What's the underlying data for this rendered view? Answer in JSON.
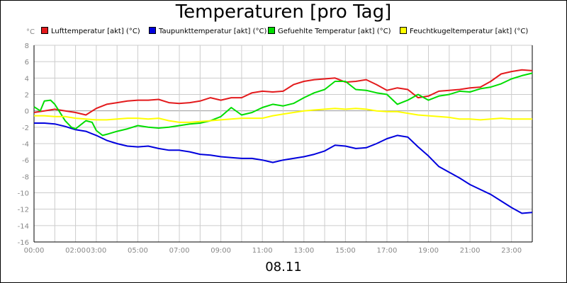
{
  "chart_data": {
    "type": "line",
    "title": "Temperaturen [pro Tag]",
    "xlabel": "08.11",
    "ylabel": "°C",
    "x_range": [
      0,
      24
    ],
    "ylim": [
      -16,
      8
    ],
    "y_ticks": [
      8,
      6,
      4,
      2,
      0,
      -2,
      -4,
      -6,
      -8,
      -10,
      -12,
      -14,
      -16
    ],
    "x_ticks": [
      {
        "h": 0,
        "label": "00:00"
      },
      {
        "h": 2,
        "label": "02:00"
      },
      {
        "h": 3,
        "label": "03:00"
      },
      {
        "h": 5,
        "label": "05:00"
      },
      {
        "h": 7,
        "label": "07:00"
      },
      {
        "h": 9,
        "label": "09:00"
      },
      {
        "h": 11,
        "label": "11:00"
      },
      {
        "h": 13,
        "label": "13:00"
      },
      {
        "h": 15,
        "label": "15:00"
      },
      {
        "h": 17,
        "label": "17:00"
      },
      {
        "h": 19,
        "label": "19:00"
      },
      {
        "h": 21,
        "label": "21:00"
      },
      {
        "h": 23,
        "label": "23:00"
      }
    ],
    "grid": true,
    "legend_position": "top",
    "series": [
      {
        "name": "Lufttemperatur [akt] (°C)",
        "color": "#e31a1c",
        "points": [
          [
            0,
            -0.2
          ],
          [
            0.5,
            0
          ],
          [
            1,
            0.2
          ],
          [
            1.5,
            0
          ],
          [
            2,
            -0.2
          ],
          [
            2.5,
            -0.5
          ],
          [
            3,
            0.3
          ],
          [
            3.5,
            0.8
          ],
          [
            4,
            1
          ],
          [
            4.5,
            1.2
          ],
          [
            5,
            1.3
          ],
          [
            5.5,
            1.3
          ],
          [
            6,
            1.4
          ],
          [
            6.5,
            1
          ],
          [
            7,
            0.9
          ],
          [
            7.5,
            1
          ],
          [
            8,
            1.2
          ],
          [
            8.5,
            1.6
          ],
          [
            9,
            1.3
          ],
          [
            9.5,
            1.6
          ],
          [
            10,
            1.6
          ],
          [
            10.5,
            2.2
          ],
          [
            11,
            2.4
          ],
          [
            11.5,
            2.3
          ],
          [
            12,
            2.4
          ],
          [
            12.5,
            3.2
          ],
          [
            13,
            3.6
          ],
          [
            13.5,
            3.8
          ],
          [
            14,
            3.9
          ],
          [
            14.5,
            4
          ],
          [
            15,
            3.5
          ],
          [
            15.5,
            3.6
          ],
          [
            16,
            3.8
          ],
          [
            16.5,
            3.2
          ],
          [
            17,
            2.5
          ],
          [
            17.5,
            2.8
          ],
          [
            18,
            2.6
          ],
          [
            18.5,
            1.6
          ],
          [
            19,
            1.8
          ],
          [
            19.5,
            2.4
          ],
          [
            20,
            2.5
          ],
          [
            20.5,
            2.6
          ],
          [
            21,
            2.8
          ],
          [
            21.5,
            2.9
          ],
          [
            22,
            3.6
          ],
          [
            22.5,
            4.5
          ],
          [
            23,
            4.8
          ],
          [
            23.5,
            5
          ],
          [
            24,
            4.9
          ]
        ]
      },
      {
        "name": "Taupunkttemperatur [akt] (°C)",
        "color": "#0000dd",
        "points": [
          [
            0,
            -1.5
          ],
          [
            0.5,
            -1.5
          ],
          [
            1,
            -1.6
          ],
          [
            1.5,
            -1.9
          ],
          [
            2,
            -2.3
          ],
          [
            2.5,
            -2.5
          ],
          [
            3,
            -3
          ],
          [
            3.5,
            -3.6
          ],
          [
            4,
            -4
          ],
          [
            4.5,
            -4.3
          ],
          [
            5,
            -4.4
          ],
          [
            5.5,
            -4.3
          ],
          [
            6,
            -4.6
          ],
          [
            6.5,
            -4.8
          ],
          [
            7,
            -4.8
          ],
          [
            7.5,
            -5
          ],
          [
            8,
            -5.3
          ],
          [
            8.5,
            -5.4
          ],
          [
            9,
            -5.6
          ],
          [
            9.5,
            -5.7
          ],
          [
            10,
            -5.8
          ],
          [
            10.5,
            -5.8
          ],
          [
            11,
            -6
          ],
          [
            11.5,
            -6.3
          ],
          [
            12,
            -6
          ],
          [
            12.5,
            -5.8
          ],
          [
            13,
            -5.6
          ],
          [
            13.5,
            -5.3
          ],
          [
            14,
            -4.9
          ],
          [
            14.5,
            -4.2
          ],
          [
            15,
            -4.3
          ],
          [
            15.5,
            -4.6
          ],
          [
            16,
            -4.5
          ],
          [
            16.5,
            -4
          ],
          [
            17,
            -3.4
          ],
          [
            17.5,
            -3
          ],
          [
            18,
            -3.2
          ],
          [
            18.5,
            -4.4
          ],
          [
            19,
            -5.5
          ],
          [
            19.5,
            -6.8
          ],
          [
            20,
            -7.5
          ],
          [
            20.5,
            -8.2
          ],
          [
            21,
            -9
          ],
          [
            21.5,
            -9.6
          ],
          [
            22,
            -10.2
          ],
          [
            22.5,
            -11
          ],
          [
            23,
            -11.8
          ],
          [
            23.5,
            -12.5
          ],
          [
            24,
            -12.4
          ]
        ]
      },
      {
        "name": "Gefuehlte Temperatur [akt] (°C)",
        "color": "#00dd00",
        "points": [
          [
            0,
            0.5
          ],
          [
            0.3,
            0
          ],
          [
            0.5,
            1.2
          ],
          [
            0.8,
            1.3
          ],
          [
            1,
            0.8
          ],
          [
            1.3,
            -0.4
          ],
          [
            1.5,
            -1.2
          ],
          [
            1.8,
            -2
          ],
          [
            2,
            -2.2
          ],
          [
            2.3,
            -1.6
          ],
          [
            2.5,
            -1.2
          ],
          [
            2.8,
            -1.4
          ],
          [
            3,
            -2.4
          ],
          [
            3.3,
            -3
          ],
          [
            3.6,
            -2.8
          ],
          [
            4,
            -2.5
          ],
          [
            4.5,
            -2.2
          ],
          [
            5,
            -1.8
          ],
          [
            5.5,
            -2
          ],
          [
            6,
            -2.1
          ],
          [
            6.5,
            -2
          ],
          [
            7,
            -1.8
          ],
          [
            7.5,
            -1.6
          ],
          [
            8,
            -1.5
          ],
          [
            8.5,
            -1.2
          ],
          [
            9,
            -0.7
          ],
          [
            9.5,
            0.4
          ],
          [
            10,
            -0.5
          ],
          [
            10.5,
            -0.2
          ],
          [
            11,
            0.4
          ],
          [
            11.5,
            0.8
          ],
          [
            12,
            0.6
          ],
          [
            12.5,
            0.9
          ],
          [
            13,
            1.6
          ],
          [
            13.5,
            2.2
          ],
          [
            14,
            2.6
          ],
          [
            14.5,
            3.6
          ],
          [
            15,
            3.6
          ],
          [
            15.5,
            2.6
          ],
          [
            16,
            2.5
          ],
          [
            16.5,
            2.2
          ],
          [
            17,
            2
          ],
          [
            17.5,
            0.8
          ],
          [
            18,
            1.3
          ],
          [
            18.5,
            2
          ],
          [
            19,
            1.3
          ],
          [
            19.5,
            1.8
          ],
          [
            20,
            2
          ],
          [
            20.5,
            2.4
          ],
          [
            21,
            2.3
          ],
          [
            21.5,
            2.7
          ],
          [
            22,
            2.9
          ],
          [
            22.5,
            3.3
          ],
          [
            23,
            3.9
          ],
          [
            23.5,
            4.3
          ],
          [
            24,
            4.6
          ]
        ]
      },
      {
        "name": "Feuchtkugeltemperatur [akt] (°C)",
        "color": "#ffff00",
        "points": [
          [
            0,
            -0.6
          ],
          [
            0.5,
            -0.6
          ],
          [
            1,
            -0.7
          ],
          [
            1.5,
            -0.7
          ],
          [
            2,
            -0.9
          ],
          [
            2.5,
            -1
          ],
          [
            3,
            -1.1
          ],
          [
            3.5,
            -1.1
          ],
          [
            4,
            -1
          ],
          [
            4.5,
            -0.9
          ],
          [
            5,
            -0.9
          ],
          [
            5.5,
            -1
          ],
          [
            6,
            -0.9
          ],
          [
            6.5,
            -1.2
          ],
          [
            7,
            -1.4
          ],
          [
            7.5,
            -1.4
          ],
          [
            8,
            -1.3
          ],
          [
            8.5,
            -1.2
          ],
          [
            9,
            -1.1
          ],
          [
            9.5,
            -1
          ],
          [
            10,
            -0.9
          ],
          [
            10.5,
            -0.9
          ],
          [
            11,
            -0.9
          ],
          [
            11.5,
            -0.6
          ],
          [
            12,
            -0.4
          ],
          [
            12.5,
            -0.2
          ],
          [
            13,
            0
          ],
          [
            13.5,
            0.1
          ],
          [
            14,
            0.2
          ],
          [
            14.5,
            0.3
          ],
          [
            15,
            0.2
          ],
          [
            15.5,
            0.3
          ],
          [
            16,
            0.2
          ],
          [
            16.5,
            0
          ],
          [
            17,
            -0.1
          ],
          [
            17.5,
            -0.1
          ],
          [
            18,
            -0.3
          ],
          [
            18.5,
            -0.5
          ],
          [
            19,
            -0.6
          ],
          [
            19.5,
            -0.7
          ],
          [
            20,
            -0.8
          ],
          [
            20.5,
            -1
          ],
          [
            21,
            -1
          ],
          [
            21.5,
            -1.1
          ],
          [
            22,
            -1
          ],
          [
            22.5,
            -0.9
          ],
          [
            23,
            -1
          ],
          [
            23.5,
            -1
          ],
          [
            24,
            -1
          ]
        ]
      }
    ]
  }
}
